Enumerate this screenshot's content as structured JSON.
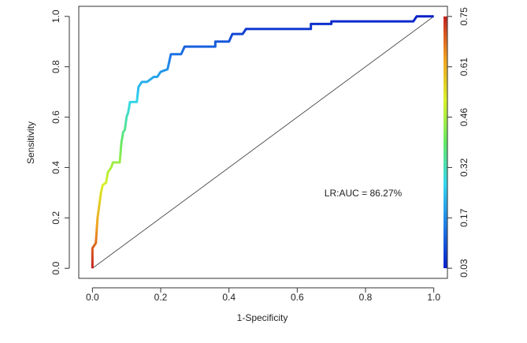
{
  "chart_data": {
    "type": "line",
    "x_label": "1-Specificity",
    "y_label": "Sensitivity",
    "annotation": "LR:AUC = 86.27%",
    "x": [
      0,
      0,
      0.01,
      0.015,
      0.02,
      0.025,
      0.03,
      0.04,
      0.045,
      0.055,
      0.06,
      0.08,
      0.085,
      0.09,
      0.095,
      0.1,
      0.105,
      0.11,
      0.13,
      0.135,
      0.145,
      0.16,
      0.18,
      0.19,
      0.2,
      0.22,
      0.23,
      0.26,
      0.27,
      0.36,
      0.36,
      0.4,
      0.41,
      0.44,
      0.45,
      0.64,
      0.64,
      0.7,
      0.7,
      0.94,
      0.95,
      1.0
    ],
    "values": [
      0,
      0.08,
      0.1,
      0.2,
      0.25,
      0.3,
      0.33,
      0.34,
      0.38,
      0.4,
      0.42,
      0.42,
      0.5,
      0.54,
      0.55,
      0.6,
      0.62,
      0.66,
      0.66,
      0.72,
      0.74,
      0.74,
      0.76,
      0.76,
      0.78,
      0.79,
      0.85,
      0.85,
      0.88,
      0.88,
      0.9,
      0.9,
      0.93,
      0.93,
      0.95,
      0.95,
      0.97,
      0.97,
      0.98,
      0.98,
      1.0,
      1.0
    ],
    "xlim": [
      -0.04,
      1.04
    ],
    "ylim": [
      -0.04,
      1.04
    ],
    "xticks": [
      {
        "value": 0,
        "label": "0.0"
      },
      0.2,
      0.4,
      0.6,
      0.8,
      {
        "value": 1,
        "label": "1.0"
      }
    ],
    "yticks": [
      {
        "value": 0,
        "label": "0.0"
      },
      0.2,
      0.4,
      0.6,
      0.8,
      {
        "value": 1,
        "label": "1.0"
      }
    ],
    "y2lim": [
      0.001,
      0.779
    ],
    "y2ticks": [
      0.03,
      {
        "value": 0.174,
        "label": "0.17"
      },
      {
        "value": 0.318,
        "label": "0.32"
      },
      {
        "value": 0.462,
        "label": "0.46"
      },
      {
        "value": 0.606,
        "label": "0.61"
      },
      0.75
    ],
    "colorscale": [
      "#0a1fc8",
      "#1e7be6",
      "#33d6f0",
      "#66e866",
      "#d8f028",
      "#f0a020",
      "#c42020"
    ]
  }
}
